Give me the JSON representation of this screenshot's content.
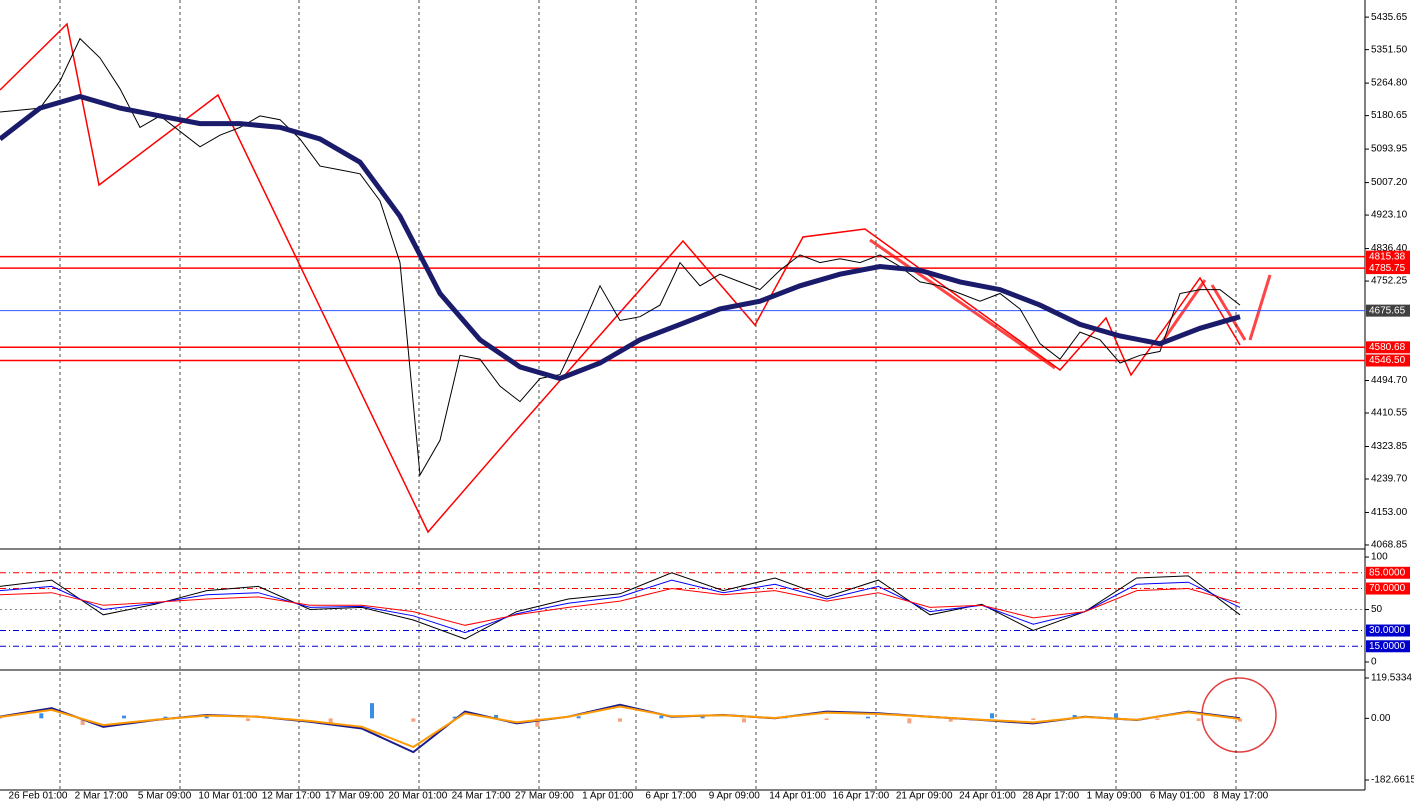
{
  "chart_data": [
    {
      "type": "line",
      "series": [
        {
          "color": "#000000",
          "values": [
            5190,
            5195,
            5200,
            5270,
            5380,
            5330,
            5250,
            5150,
            5180,
            5140,
            5100,
            5130,
            5150,
            5180,
            5170,
            5120,
            5050,
            5040,
            5030,
            4960,
            4800,
            4250,
            4340,
            4560,
            4550,
            4480,
            4440,
            4500,
            4510,
            4620,
            4740,
            4650,
            4660,
            4690,
            4800,
            4740,
            4770,
            4750,
            4730,
            4780,
            4820,
            4800,
            4810,
            4800,
            4820,
            4790,
            4750,
            4740,
            4720,
            4700,
            4720,
            4680,
            4590,
            4550,
            4620,
            4600,
            4540,
            4560,
            4570,
            4720,
            4730,
            4730,
            4690
          ]
        },
        {
          "color": "#1b1b6b",
          "values": [
            5120,
            5200,
            5230,
            5200,
            5180,
            5160,
            5160,
            5150,
            5120,
            5060,
            4920,
            4720,
            4600,
            4530,
            4500,
            4540,
            4600,
            4640,
            4680,
            4700,
            4740,
            4770,
            4790,
            4780,
            4750,
            4730,
            4690,
            4640,
            4610,
            4590,
            4630,
            4660
          ]
        }
      ],
      "ylim": [
        4061,
        5480
      ],
      "yticks": [
        5435.65,
        {
          "value": 5351.5,
          "label": "5351.50"
        },
        {
          "value": 5264.8,
          "label": "5264.80"
        },
        5180.65,
        5093.95,
        {
          "value": 5007.2,
          "label": "5007.20"
        },
        {
          "value": 4923.1,
          "label": "4923.10"
        },
        {
          "value": 4836.4,
          "label": "4836.40"
        },
        4752.25,
        {
          "value": 4494.7,
          "label": "4494.70"
        },
        4410.55,
        4323.85,
        {
          "value": 4239.7,
          "label": "4239.70"
        },
        {
          "value": 4153,
          "label": "4153.00"
        },
        4068.85
      ],
      "levels": [
        {
          "value": 4815.38,
          "color": "#ff0000"
        },
        {
          "value": 4785.75,
          "color": "#ff0000"
        },
        {
          "value": 4675.65,
          "color": "#3355ff",
          "box": "#404040"
        },
        {
          "value": 4580.68,
          "color": "#ff0000"
        },
        {
          "value": 4546.5,
          "label": "4546.50",
          "color": "#ff0000"
        }
      ],
      "x_tick_labels": [
        "26 Feb 01:00",
        "2 Mar 17:00",
        "5 Mar 09:00",
        "10 Mar 01:00",
        "12 Mar 17:00",
        "17 Mar 09:00",
        "20 Mar 01:00",
        "24 Mar 17:00",
        "27 Mar 09:00",
        "1 Apr 01:00",
        "6 Apr 17:00",
        "9 Apr 09:00",
        "14 Apr 01:00",
        "16 Apr 17:00",
        "21 Apr 09:00",
        "24 Apr 01:00",
        "28 Apr 17:00",
        "1 May 09:00",
        "6 May 01:00",
        "8 May 17:00"
      ]
    },
    {
      "type": "line",
      "series": [
        {
          "color": "#000000",
          "values": [
            72,
            78,
            45,
            55,
            68,
            72,
            50,
            52,
            40,
            22,
            48,
            60,
            65,
            85,
            68,
            80,
            62,
            78,
            45,
            55,
            30,
            48,
            80,
            82,
            45
          ]
        },
        {
          "color": "#0000ff",
          "values": [
            68,
            72,
            50,
            56,
            64,
            66,
            52,
            53,
            44,
            28,
            46,
            56,
            62,
            78,
            66,
            74,
            60,
            72,
            48,
            54,
            36,
            48,
            74,
            76,
            52
          ]
        },
        {
          "color": "#ff0000",
          "values": [
            64,
            66,
            54,
            57,
            60,
            62,
            54,
            54,
            48,
            35,
            45,
            52,
            58,
            70,
            64,
            68,
            58,
            66,
            52,
            54,
            42,
            48,
            68,
            70,
            56
          ]
        }
      ],
      "ylim": [
        -5.7,
        106.7
      ],
      "yticks": [
        100,
        50,
        0
      ],
      "levels": [
        {
          "value": 85,
          "label": "85.0000",
          "color": "#ff0000"
        },
        {
          "value": 70,
          "label": "70.0000",
          "color": "#ff0000"
        },
        {
          "value": 30,
          "label": "30.0000",
          "color": "#0000cc"
        },
        {
          "value": 15,
          "label": "15.0000",
          "color": "#0000cc"
        }
      ]
    },
    {
      "type": "bar",
      "values": [
        5,
        15,
        -20,
        8,
        5,
        10,
        -8,
        -6,
        -20,
        45,
        -10,
        5,
        10,
        -25,
        6,
        -10,
        8,
        8,
        -12,
        5,
        -5,
        5,
        -15,
        -10,
        15,
        -5,
        10,
        15,
        -5,
        -8,
        -10
      ],
      "positive_color": "#3a8ee6",
      "negative_color": "#f4a582",
      "series": [
        {
          "color": "#1b1b8b",
          "values": [
            5,
            30,
            -25,
            -5,
            10,
            5,
            -10,
            -30,
            -100,
            20,
            -15,
            5,
            40,
            5,
            10,
            0,
            20,
            15,
            5,
            -5,
            -15,
            5,
            -5,
            20,
            0
          ]
        },
        {
          "color": "#ff9900",
          "values": [
            4,
            25,
            -20,
            -4,
            8,
            5,
            -8,
            -25,
            -85,
            15,
            -12,
            5,
            35,
            6,
            9,
            1,
            17,
            13,
            5,
            -4,
            -12,
            4,
            -4,
            18,
            -2
          ]
        }
      ],
      "ylim": [
        -212.3,
        137.3
      ],
      "yticks": [
        119.5334,
        {
          "value": 0,
          "label": "0.00"
        },
        -182.6615
      ]
    }
  ]
}
